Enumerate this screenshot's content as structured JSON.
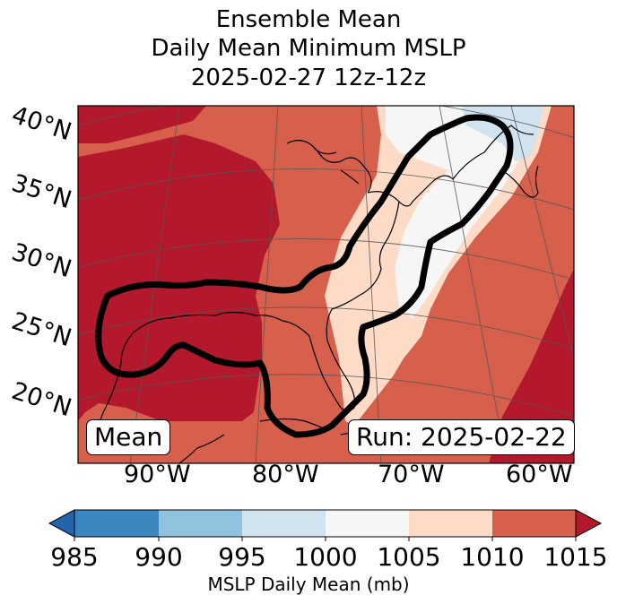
{
  "title": {
    "line1": "Ensemble Mean",
    "line2": "Daily Mean Minimum MSLP",
    "line3": "2025-02-27 12z-12z"
  },
  "map": {
    "lat_labels": [
      "40°N",
      "35°N",
      "30°N",
      "25°N",
      "20°N"
    ],
    "lon_labels": [
      "90°W",
      "80°W",
      "70°W",
      "60°W"
    ],
    "mean_box": "Mean",
    "run_box": "Run: 2025-02-22",
    "colors": {
      "c985": "#3a87c0",
      "c990": "#91c3de",
      "c995": "#d0e3ef",
      "c1000": "#f6f6f6",
      "c1005": "#fddbc7",
      "c1010": "#d7604d",
      "c1015": "#b3182c"
    }
  },
  "colorbar": {
    "ticks": [
      "985",
      "990",
      "995",
      "1000",
      "1005",
      "1010",
      "1015"
    ],
    "label": "MSLP Daily Mean (mb)",
    "colors": [
      "#3a87c0",
      "#91c3de",
      "#d0e3ef",
      "#f6f6f6",
      "#fddbc7",
      "#d7604d",
      "#b3182c"
    ],
    "extend_low_color": "#2166ac",
    "extend_high_color": "#b3182c"
  }
}
